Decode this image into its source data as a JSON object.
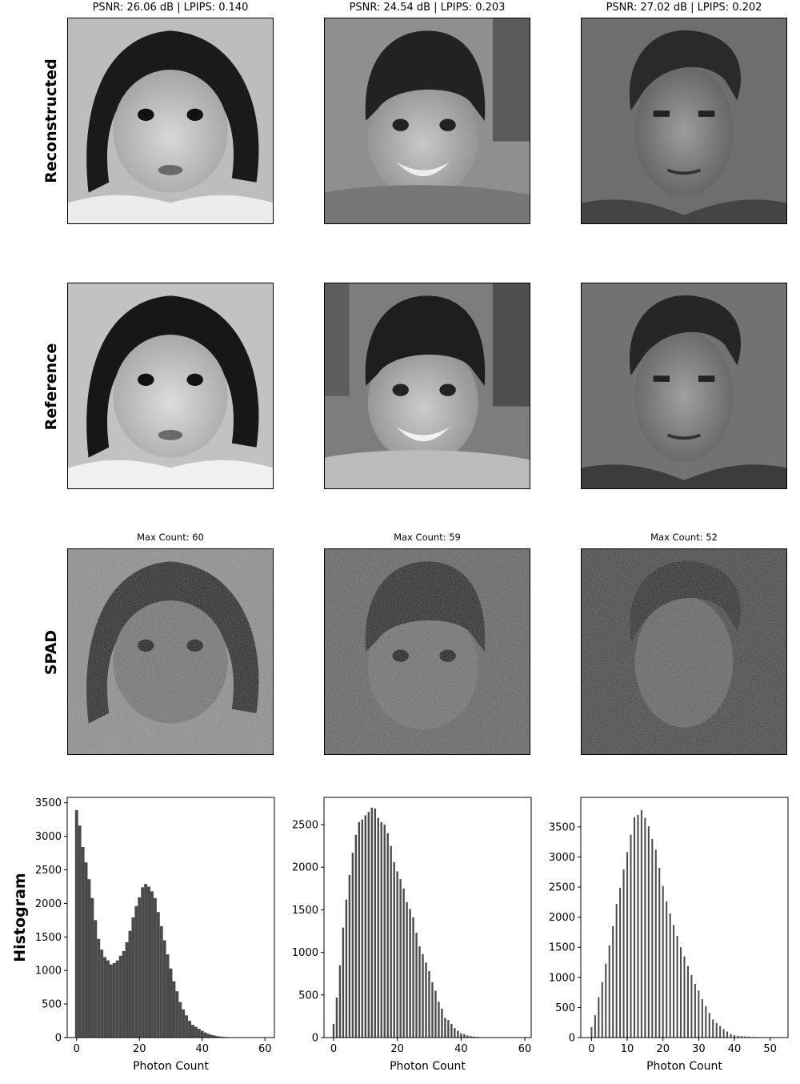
{
  "row_labels": {
    "reconstructed": "Reconstructed",
    "reference": "Reference",
    "spad": "SPAD",
    "histogram": "Histogram"
  },
  "columns": [
    {
      "metrics_title": "PSNR: 26.06 dB | LPIPS: 0.140",
      "count_title": "Max Count: 60",
      "subject": "toddler-girl-portrait"
    },
    {
      "metrics_title": "PSNR: 24.54 dB | LPIPS: 0.203",
      "count_title": "Max Count: 59",
      "subject": "smiling-boy-portrait"
    },
    {
      "metrics_title": "PSNR: 27.02 dB | LPIPS: 0.202",
      "count_title": "Max Count: 52",
      "subject": "young-man-portrait"
    }
  ],
  "colors": {
    "bar": "#4a4a4a",
    "axis": "#000000"
  },
  "chart_data": [
    {
      "type": "bar",
      "xlabel": "Photon Count",
      "ylabel": "Histogram",
      "xlim": [
        -3,
        63
      ],
      "ylim": [
        0,
        3580
      ],
      "xticks": [
        0,
        20,
        40,
        60
      ],
      "yticks": [
        0,
        500,
        1000,
        1500,
        2000,
        2500,
        3000,
        3500
      ],
      "x": [
        0,
        1,
        2,
        3,
        4,
        5,
        6,
        7,
        8,
        9,
        10,
        11,
        12,
        13,
        14,
        15,
        16,
        17,
        18,
        19,
        20,
        21,
        22,
        23,
        24,
        25,
        26,
        27,
        28,
        29,
        30,
        31,
        32,
        33,
        34,
        35,
        36,
        37,
        38,
        39,
        40,
        41,
        42,
        43,
        44,
        45,
        46,
        47,
        48,
        49,
        50,
        51,
        52,
        53,
        54,
        55,
        56,
        57,
        58,
        59,
        60
      ],
      "values": [
        3390,
        3160,
        2840,
        2610,
        2360,
        2080,
        1750,
        1470,
        1310,
        1200,
        1150,
        1090,
        1110,
        1150,
        1220,
        1290,
        1420,
        1590,
        1790,
        1960,
        2090,
        2240,
        2290,
        2250,
        2180,
        2080,
        1870,
        1660,
        1450,
        1240,
        1030,
        840,
        690,
        530,
        420,
        330,
        250,
        190,
        160,
        130,
        100,
        75,
        55,
        40,
        30,
        20,
        14,
        10,
        7,
        5,
        4,
        3,
        2,
        2,
        1,
        1,
        1,
        0,
        0,
        0,
        1
      ],
      "bar_width": 1.0
    },
    {
      "type": "bar",
      "xlabel": "Photon Count",
      "ylabel": "",
      "xlim": [
        -3,
        62
      ],
      "ylim": [
        0,
        2820
      ],
      "xticks": [
        0,
        20,
        40,
        60
      ],
      "yticks": [
        0,
        500,
        1000,
        1500,
        2000,
        2500
      ],
      "x": [
        0,
        1,
        2,
        3,
        4,
        5,
        6,
        7,
        8,
        9,
        10,
        11,
        12,
        13,
        14,
        15,
        16,
        17,
        18,
        19,
        20,
        21,
        22,
        23,
        24,
        25,
        26,
        27,
        28,
        29,
        30,
        31,
        32,
        33,
        34,
        35,
        36,
        37,
        38,
        39,
        40,
        41,
        42,
        43,
        44,
        45,
        46,
        47,
        48,
        49,
        50,
        51,
        52,
        53,
        54,
        55,
        56,
        57,
        58,
        59
      ],
      "values": [
        160,
        470,
        850,
        1290,
        1620,
        1910,
        2170,
        2380,
        2530,
        2560,
        2610,
        2650,
        2700,
        2690,
        2580,
        2530,
        2500,
        2400,
        2250,
        2060,
        1950,
        1860,
        1750,
        1590,
        1510,
        1410,
        1230,
        1070,
        980,
        880,
        780,
        650,
        550,
        420,
        340,
        230,
        205,
        160,
        110,
        80,
        50,
        40,
        25,
        18,
        12,
        8,
        5,
        3,
        2,
        1,
        1,
        0,
        0,
        0,
        0,
        0,
        0,
        0,
        0,
        1
      ],
      "bar_width": 0.6
    },
    {
      "type": "bar",
      "xlabel": "Photon Count",
      "ylabel": "",
      "xlim": [
        -3,
        55
      ],
      "ylim": [
        0,
        3990
      ],
      "xticks": [
        0,
        10,
        20,
        30,
        40,
        50
      ],
      "yticks": [
        0,
        500,
        1000,
        1500,
        2000,
        2500,
        3000,
        3500
      ],
      "x": [
        0,
        1,
        2,
        3,
        4,
        5,
        6,
        7,
        8,
        9,
        10,
        11,
        12,
        13,
        14,
        15,
        16,
        17,
        18,
        19,
        20,
        21,
        22,
        23,
        24,
        25,
        26,
        27,
        28,
        29,
        30,
        31,
        32,
        33,
        34,
        35,
        36,
        37,
        38,
        39,
        40,
        41,
        42,
        43,
        44,
        45,
        46,
        47,
        48,
        49,
        50,
        51,
        52
      ],
      "values": [
        170,
        370,
        670,
        920,
        1230,
        1530,
        1850,
        2220,
        2490,
        2790,
        3080,
        3370,
        3660,
        3700,
        3780,
        3650,
        3510,
        3300,
        3120,
        2820,
        2520,
        2260,
        2060,
        1870,
        1690,
        1500,
        1350,
        1190,
        1040,
        890,
        780,
        640,
        520,
        410,
        300,
        240,
        190,
        140,
        100,
        60,
        40,
        30,
        25,
        20,
        15,
        10,
        8,
        5,
        4,
        3,
        2,
        1,
        1
      ],
      "bar_width": 0.45
    }
  ]
}
